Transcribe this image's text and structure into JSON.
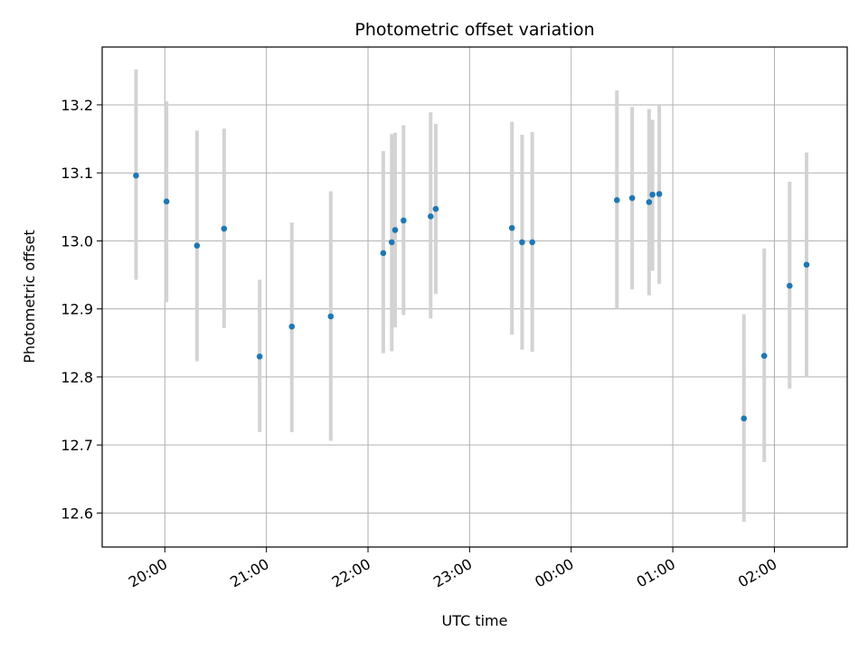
{
  "chart_data": {
    "type": "scatter",
    "title": "Photometric offset variation",
    "xlabel": "UTC time",
    "ylabel": "Photometric offset",
    "grid": true,
    "x_axis_kind": "datetime",
    "xlim": [
      "2000-01-01T19:23:00",
      "2000-01-02T02:43:00"
    ],
    "ylim": [
      12.55,
      13.285
    ],
    "xticks": [
      {
        "t": "2000-01-01T20:00:00",
        "label": "20:00"
      },
      {
        "t": "2000-01-01T21:00:00",
        "label": "21:00"
      },
      {
        "t": "2000-01-01T22:00:00",
        "label": "22:00"
      },
      {
        "t": "2000-01-01T23:00:00",
        "label": "23:00"
      },
      {
        "t": "2000-01-02T00:00:00",
        "label": "00:00"
      },
      {
        "t": "2000-01-02T01:00:00",
        "label": "01:00"
      },
      {
        "t": "2000-01-02T02:00:00",
        "label": "02:00"
      }
    ],
    "yticks": [
      12.6,
      12.7,
      12.8,
      12.9,
      13.0,
      13.1,
      13.2
    ],
    "colors": {
      "points": "#1f77b4",
      "errorbars": "#d3d3d3",
      "grid": "#b0b0b0"
    },
    "points": [
      {
        "t": "2000-01-01T19:43:00",
        "y": 13.096,
        "ylow": 12.943,
        "yhigh": 13.252
      },
      {
        "t": "2000-01-01T19:61:00",
        "y": 13.058,
        "ylow": 12.91,
        "yhigh": 13.205
      },
      {
        "t": "2000-01-01T20:19:00",
        "y": 12.993,
        "ylow": 12.823,
        "yhigh": 13.162
      },
      {
        "t": "2000-01-01T20:35:00",
        "y": 13.018,
        "ylow": 12.872,
        "yhigh": 13.165
      },
      {
        "t": "2000-01-01T20:56:00",
        "y": 12.83,
        "ylow": 12.719,
        "yhigh": 12.943
      },
      {
        "t": "2000-01-01T21:15:00",
        "y": 12.874,
        "ylow": 12.719,
        "yhigh": 13.027
      },
      {
        "t": "2000-01-01T21:38:00",
        "y": 12.889,
        "ylow": 12.706,
        "yhigh": 13.073
      },
      {
        "t": "2000-01-01T22:09:00",
        "y": 12.982,
        "ylow": 12.835,
        "yhigh": 13.132
      },
      {
        "t": "2000-01-01T22:14:00",
        "y": 12.998,
        "ylow": 12.838,
        "yhigh": 13.157
      },
      {
        "t": "2000-01-01T22:16:00",
        "y": 13.016,
        "ylow": 12.873,
        "yhigh": 13.159
      },
      {
        "t": "2000-01-01T22:21:00",
        "y": 13.03,
        "ylow": 12.891,
        "yhigh": 13.17
      },
      {
        "t": "2000-01-01T22:37:00",
        "y": 13.036,
        "ylow": 12.886,
        "yhigh": 13.189
      },
      {
        "t": "2000-01-01T22:40:00",
        "y": 13.047,
        "ylow": 12.922,
        "yhigh": 13.172
      },
      {
        "t": "2000-01-01T23:25:00",
        "y": 13.019,
        "ylow": 12.862,
        "yhigh": 13.175
      },
      {
        "t": "2000-01-01T23:31:00",
        "y": 12.998,
        "ylow": 12.84,
        "yhigh": 13.156
      },
      {
        "t": "2000-01-01T23:37:00",
        "y": 12.998,
        "ylow": 12.837,
        "yhigh": 13.16
      },
      {
        "t": "2000-01-02T00:27:00",
        "y": 13.06,
        "ylow": 12.9,
        "yhigh": 13.221
      },
      {
        "t": "2000-01-02T00:36:00",
        "y": 13.063,
        "ylow": 12.929,
        "yhigh": 13.197
      },
      {
        "t": "2000-01-02T00:46:00",
        "y": 13.057,
        "ylow": 12.92,
        "yhigh": 13.194
      },
      {
        "t": "2000-01-02T00:48:00",
        "y": 13.068,
        "ylow": 12.956,
        "yhigh": 13.178
      },
      {
        "t": "2000-01-02T00:52:00",
        "y": 13.069,
        "ylow": 12.937,
        "yhigh": 13.2
      },
      {
        "t": "2000-01-02T01:42:00",
        "y": 12.739,
        "ylow": 12.587,
        "yhigh": 12.892
      },
      {
        "t": "2000-01-02T01:54:00",
        "y": 12.831,
        "ylow": 12.675,
        "yhigh": 12.989
      },
      {
        "t": "2000-01-02T02:09:00",
        "y": 12.934,
        "ylow": 12.783,
        "yhigh": 13.087
      },
      {
        "t": "2000-01-02T02:19:00",
        "y": 12.965,
        "ylow": 12.8,
        "yhigh": 13.13
      }
    ]
  }
}
